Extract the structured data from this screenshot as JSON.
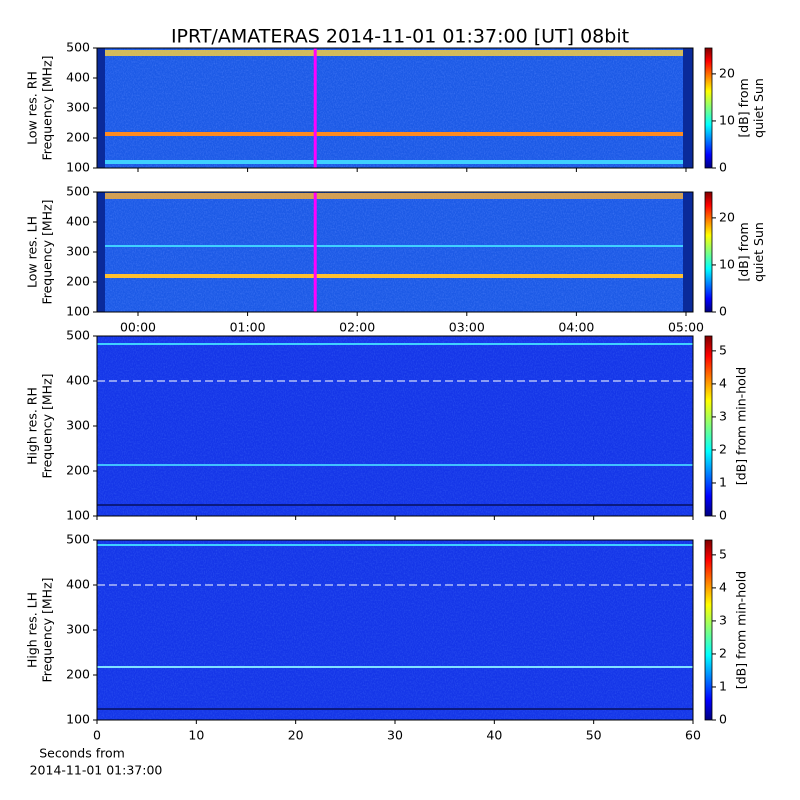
{
  "title": "IPRT/AMATERAS 2014-11-01 01:37:00 [UT]   08bit",
  "chart_data": [
    {
      "type": "heatmap",
      "ylabel": [
        "Low res. RH",
        "Frequency [MHz]"
      ],
      "ylim": [
        100,
        500
      ],
      "yticks": [
        100,
        200,
        300,
        400,
        500
      ],
      "marker_x": 1.617,
      "marker_color": "#ff00ff",
      "colormap": "jet",
      "clim": [
        0,
        25.5
      ],
      "cticks": [
        0,
        10,
        20
      ],
      "clabel": [
        "[dB] from",
        "quiet Sun"
      ]
    },
    {
      "type": "heatmap",
      "ylabel": [
        "Low res. LH",
        "Frequency [MHz]"
      ],
      "ylim": [
        100,
        500
      ],
      "yticks": [
        100,
        200,
        300,
        400,
        500
      ],
      "marker_x": 1.617,
      "marker_color": "#ff00ff",
      "xlim": [
        -0.374,
        5.064
      ],
      "xticks": [
        {
          "value": 0,
          "label": "00:00"
        },
        {
          "value": 1,
          "label": "01:00"
        },
        {
          "value": 2,
          "label": "02:00"
        },
        {
          "value": 3,
          "label": "03:00"
        },
        {
          "value": 4,
          "label": "04:00"
        },
        {
          "value": 5,
          "label": "05:00"
        }
      ],
      "colormap": "jet",
      "clim": [
        0,
        25.5
      ],
      "cticks": [
        0,
        10,
        20
      ],
      "clabel": [
        "[dB] from",
        "quiet Sun"
      ]
    },
    {
      "type": "heatmap",
      "ylabel": [
        "High res. RH",
        "Frequency [MHz]"
      ],
      "ylim": [
        100,
        500
      ],
      "yticks": [
        100,
        200,
        300,
        400,
        500
      ],
      "colormap": "jet",
      "clim": [
        0,
        5.45
      ],
      "cticks": [
        0,
        1,
        2,
        3,
        4,
        5
      ],
      "clabel": [
        "[dB] from min-hold"
      ]
    },
    {
      "type": "heatmap",
      "ylabel": [
        "High res. LH",
        "Frequency [MHz]"
      ],
      "ylim": [
        100,
        500
      ],
      "yticks": [
        100,
        200,
        300,
        400,
        500
      ],
      "xlim": [
        0,
        60
      ],
      "xticks": [
        0,
        10,
        20,
        30,
        40,
        50,
        60
      ],
      "xlabel": [
        "Seconds from",
        "2014-11-01 01:37:00"
      ],
      "colormap": "jet",
      "clim": [
        0,
        5.45
      ],
      "cticks": [
        0,
        1,
        2,
        3,
        4,
        5
      ],
      "clabel": [
        "[dB] from min-hold"
      ]
    }
  ]
}
